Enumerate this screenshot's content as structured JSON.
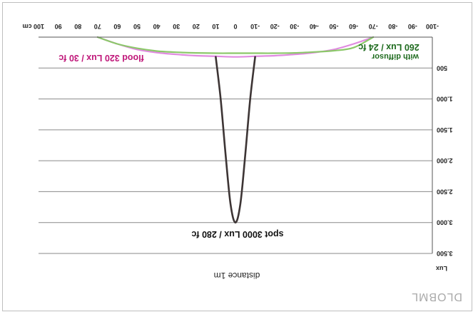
{
  "chart_data": {
    "type": "line",
    "rotated_180": true,
    "title": "",
    "xlabel": "distance 1m",
    "ylabel": "Lux",
    "x_unit": "cm",
    "xlim": [
      -100,
      100
    ],
    "ylim": [
      0,
      3500
    ],
    "x_ticks": [
      -100,
      -90,
      -80,
      -70,
      -60,
      -50,
      -40,
      -30,
      -20,
      -10,
      0,
      10,
      20,
      30,
      40,
      50,
      60,
      70,
      80,
      90,
      100
    ],
    "x_tick_labels": [
      "-100",
      "-90",
      "-80",
      "-70",
      "-60",
      "-50",
      "-40",
      "-30",
      "-20",
      "-10",
      "0",
      "10",
      "20",
      "30",
      "40",
      "50",
      "60",
      "70",
      "80",
      "90",
      "100 cm"
    ],
    "y_ticks": [
      500,
      1000,
      1500,
      2000,
      2500,
      3000,
      3500
    ],
    "y_tick_labels": [
      "500",
      "1.000",
      "1.500",
      "2.000",
      "2.500",
      "3.000",
      "3.500"
    ],
    "grid_y": true,
    "series": [
      {
        "key": "flood",
        "color": "#e08ae0",
        "x": [
          -70,
          -60,
          -50,
          -40,
          -30,
          -20,
          -10,
          0,
          10,
          20,
          30,
          40,
          50,
          60,
          70
        ],
        "y": [
          0,
          110,
          200,
          250,
          280,
          300,
          310,
          320,
          310,
          300,
          280,
          250,
          200,
          110,
          0
        ]
      },
      {
        "key": "diffusor",
        "color": "#8cc86a",
        "x": [
          -70,
          -60,
          -50,
          -40,
          -30,
          -20,
          -10,
          0,
          10,
          20,
          30,
          40,
          50,
          60,
          70
        ],
        "y": [
          0,
          170,
          220,
          240,
          255,
          260,
          260,
          260,
          260,
          255,
          245,
          225,
          180,
          110,
          0
        ]
      },
      {
        "key": "spot",
        "color": "#3d3535",
        "x": [
          -10,
          -7.5,
          -5,
          -2.5,
          0,
          2.5,
          5,
          7.5,
          10
        ],
        "y": [
          320,
          1000,
          1900,
          2700,
          3000,
          2700,
          1900,
          1000,
          320
        ]
      }
    ],
    "annotations": {
      "spot": "spot 3000 Lux / 280 fc",
      "flood": "flood 320 Lux / 30 fc",
      "diffusor_line1": "260 Lux / 24 fc",
      "diffusor_line2": "with diffusor"
    },
    "colors": {
      "flood_text": "#c0187a",
      "diffusor_text": "#1e6b1e",
      "spot_text": "#111111",
      "grid": "#8a8a8a",
      "axis": "#555555",
      "watermark": "#a9a9a9"
    }
  },
  "watermark": "DLOBML"
}
